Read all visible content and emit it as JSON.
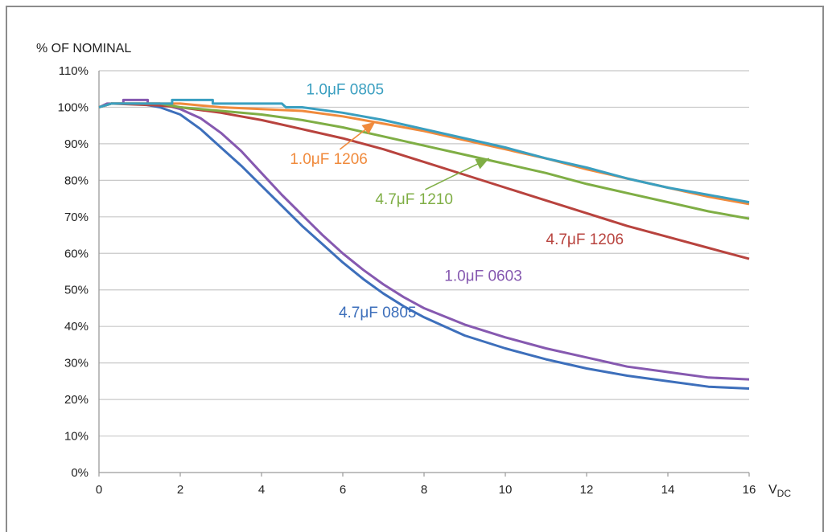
{
  "chart_data": {
    "type": "line",
    "ylabel": "% OF NOMINAL",
    "xlabel": "V",
    "xlabel_sub": "DC",
    "xlim": [
      0,
      16
    ],
    "ylim": [
      0,
      110
    ],
    "x_ticks": [
      0,
      2,
      4,
      6,
      8,
      10,
      12,
      14,
      16
    ],
    "y_ticks": [
      0,
      10,
      20,
      30,
      40,
      50,
      60,
      70,
      80,
      90,
      100,
      110
    ],
    "y_tick_suffix": "%",
    "grid": "horizontal",
    "series": [
      {
        "name": "1.0μF 0805",
        "color": "#3a9fc0",
        "points": [
          [
            0,
            100
          ],
          [
            0.3,
            101
          ],
          [
            1.8,
            101
          ],
          [
            1.8,
            102
          ],
          [
            2.8,
            102
          ],
          [
            2.8,
            101
          ],
          [
            4.5,
            101
          ],
          [
            4.6,
            100
          ],
          [
            5,
            100
          ],
          [
            6,
            98.5
          ],
          [
            7,
            96.5
          ],
          [
            8,
            94
          ],
          [
            9,
            91.5
          ],
          [
            10,
            89
          ],
          [
            11,
            86
          ],
          [
            12,
            83.5
          ],
          [
            13,
            80.5
          ],
          [
            14,
            78
          ],
          [
            15,
            76
          ],
          [
            16,
            74
          ]
        ]
      },
      {
        "name": "1.0μF 1206",
        "color": "#f08a3c",
        "points": [
          [
            0,
            100
          ],
          [
            0.3,
            101
          ],
          [
            2,
            101
          ],
          [
            3,
            100
          ],
          [
            4,
            99.5
          ],
          [
            5,
            99
          ],
          [
            6,
            97.5
          ],
          [
            7,
            95.5
          ],
          [
            8,
            93.5
          ],
          [
            9,
            91
          ],
          [
            10,
            88.5
          ],
          [
            11,
            86
          ],
          [
            12,
            83
          ],
          [
            13,
            80.5
          ],
          [
            14,
            78
          ],
          [
            15,
            75.5
          ],
          [
            16,
            73.5
          ]
        ]
      },
      {
        "name": "4.7μF 1210",
        "color": "#7fae45",
        "points": [
          [
            0,
            100
          ],
          [
            0.3,
            101
          ],
          [
            1.5,
            101
          ],
          [
            2,
            100
          ],
          [
            3,
            99
          ],
          [
            4,
            98
          ],
          [
            5,
            96.5
          ],
          [
            6,
            94.5
          ],
          [
            7,
            92
          ],
          [
            8,
            89.5
          ],
          [
            9,
            87
          ],
          [
            10,
            84.5
          ],
          [
            11,
            82
          ],
          [
            12,
            79
          ],
          [
            13,
            76.5
          ],
          [
            14,
            74
          ],
          [
            15,
            71.5
          ],
          [
            16,
            69.5
          ]
        ]
      },
      {
        "name": "4.7μF 1206",
        "color": "#b8433e",
        "points": [
          [
            0,
            100
          ],
          [
            0.3,
            101
          ],
          [
            1.5,
            100.5
          ],
          [
            2,
            100
          ],
          [
            3,
            98.5
          ],
          [
            4,
            96.5
          ],
          [
            5,
            94
          ],
          [
            6,
            91.5
          ],
          [
            7,
            88.5
          ],
          [
            8,
            85
          ],
          [
            9,
            81.5
          ],
          [
            10,
            78
          ],
          [
            11,
            74.5
          ],
          [
            12,
            71
          ],
          [
            13,
            67.5
          ],
          [
            14,
            64.5
          ],
          [
            15,
            61.5
          ],
          [
            16,
            58.5
          ]
        ]
      },
      {
        "name": "1.0μF 0603",
        "color": "#8659b0",
        "points": [
          [
            0,
            100
          ],
          [
            0.2,
            101
          ],
          [
            0.6,
            101
          ],
          [
            0.6,
            102
          ],
          [
            1.2,
            102
          ],
          [
            1.2,
            101
          ],
          [
            1.5,
            101
          ],
          [
            2,
            99.5
          ],
          [
            2.5,
            97
          ],
          [
            3,
            93
          ],
          [
            3.5,
            88
          ],
          [
            4,
            82
          ],
          [
            4.5,
            76
          ],
          [
            5,
            70.5
          ],
          [
            5.5,
            65
          ],
          [
            6,
            60
          ],
          [
            6.5,
            55.5
          ],
          [
            7,
            51.5
          ],
          [
            7.5,
            48
          ],
          [
            8,
            45
          ],
          [
            9,
            40.5
          ],
          [
            10,
            37
          ],
          [
            11,
            34
          ],
          [
            12,
            31.5
          ],
          [
            13,
            29
          ],
          [
            14,
            27.5
          ],
          [
            15,
            26
          ],
          [
            16,
            25.5
          ]
        ]
      },
      {
        "name": "4.7μF 0805",
        "color": "#3d6fbb",
        "points": [
          [
            0,
            100
          ],
          [
            0.3,
            101
          ],
          [
            1,
            101
          ],
          [
            1.5,
            100
          ],
          [
            2,
            98
          ],
          [
            2.5,
            94
          ],
          [
            3,
            89
          ],
          [
            3.5,
            84
          ],
          [
            4,
            78.5
          ],
          [
            4.5,
            73
          ],
          [
            5,
            67.5
          ],
          [
            5.5,
            62.5
          ],
          [
            6,
            57.5
          ],
          [
            6.5,
            53
          ],
          [
            7,
            49
          ],
          [
            7.5,
            45.5
          ],
          [
            8,
            42.5
          ],
          [
            9,
            37.5
          ],
          [
            10,
            34
          ],
          [
            11,
            31
          ],
          [
            12,
            28.5
          ],
          [
            13,
            26.5
          ],
          [
            14,
            25
          ],
          [
            15,
            23.5
          ],
          [
            16,
            23
          ]
        ]
      }
    ],
    "annotations": [
      {
        "series": 0,
        "text": "1.0μF 0805",
        "x": 5.1,
        "y": 103.5,
        "anchor": "start"
      },
      {
        "series": 1,
        "text": "1.0μF 1206",
        "x": 4.7,
        "y": 84.5,
        "anchor": "start",
        "arrow_to": [
          6.8,
          96
        ]
      },
      {
        "series": 2,
        "text": "4.7μF 1210",
        "x": 6.8,
        "y": 73.5,
        "anchor": "start",
        "arrow_to": [
          9.6,
          86
        ]
      },
      {
        "series": 3,
        "text": "4.7μF 1206",
        "x": 11,
        "y": 62.5,
        "anchor": "start"
      },
      {
        "series": 4,
        "text": "1.0μF 0603",
        "x": 8.5,
        "y": 52.5,
        "anchor": "start"
      },
      {
        "series": 5,
        "text": "4.7μF 0805",
        "x": 5.9,
        "y": 42.5,
        "anchor": "start"
      }
    ]
  }
}
